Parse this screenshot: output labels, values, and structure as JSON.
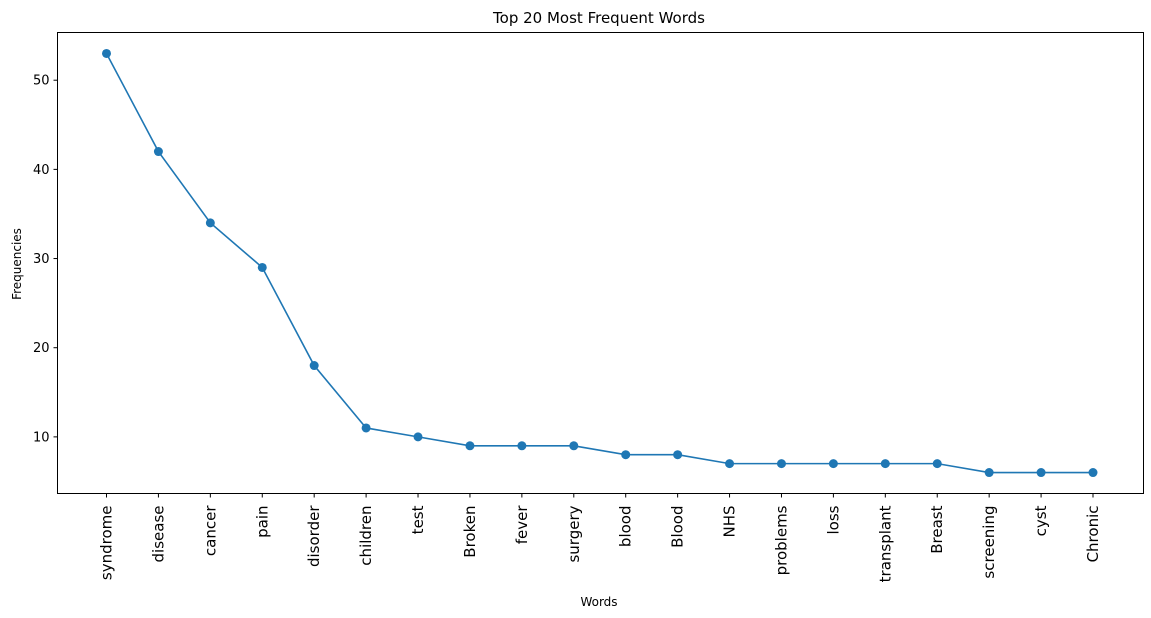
{
  "chart_data": {
    "type": "line",
    "title": "Top 20 Most Frequent Words",
    "xlabel": "Words",
    "ylabel": "Frequencies",
    "categories": [
      "syndrome",
      "disease",
      "cancer",
      "pain",
      "disorder",
      "children",
      "test",
      "Broken",
      "fever",
      "surgery",
      "blood",
      "Blood",
      "NHS",
      "problems",
      "loss",
      "transplant",
      "Breast",
      "screening",
      "cyst",
      "Chronic"
    ],
    "values": [
      53,
      42,
      34,
      29,
      18,
      11,
      10,
      9,
      9,
      9,
      8,
      8,
      7,
      7,
      7,
      7,
      7,
      6,
      6,
      6
    ],
    "yticks": [
      10,
      20,
      30,
      40,
      50
    ],
    "ylim": [
      3.65,
      55.35
    ],
    "marker": "circle",
    "color": "#1f77b4",
    "grid": false,
    "legend": "none"
  }
}
